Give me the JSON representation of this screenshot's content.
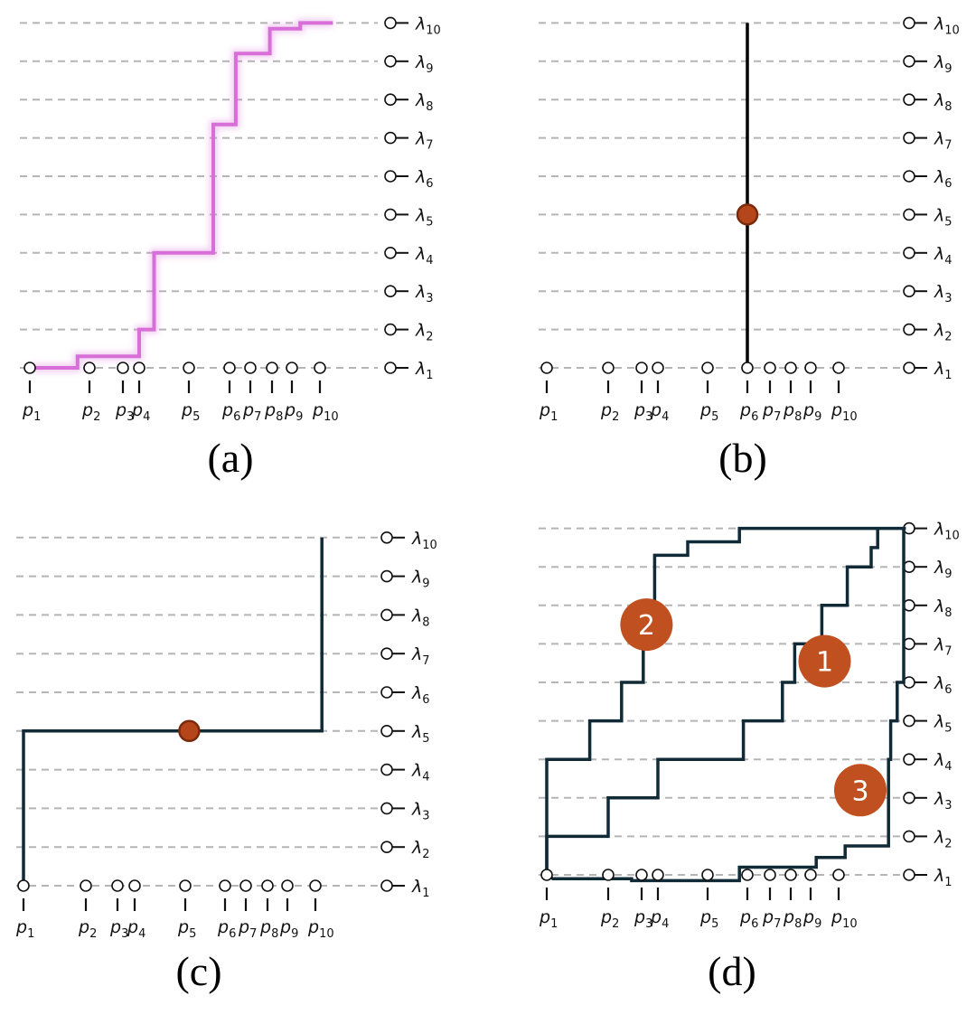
{
  "panels": [
    {
      "id": "a",
      "caption": "(a)",
      "path_style": "glow",
      "path_color": "#d86fd8",
      "path": [
        [
          1,
          1
        ],
        [
          1.8,
          1
        ],
        [
          1.8,
          1.3
        ],
        [
          4,
          1.3
        ],
        [
          4,
          2
        ],
        [
          4.3,
          2
        ],
        [
          4.3,
          2.95
        ],
        [
          4.3,
          4
        ],
        [
          5.6,
          4
        ],
        [
          5.6,
          7.35
        ],
        [
          6.3,
          7.35
        ],
        [
          6.3,
          9.2
        ],
        [
          7.9,
          9.2
        ],
        [
          7.9,
          9.85
        ],
        [
          9.3,
          9.85
        ],
        [
          9.3,
          10
        ],
        [
          10.6,
          10
        ]
      ],
      "dot": null,
      "badges": []
    },
    {
      "id": "b",
      "caption": "(b)",
      "path_style": "solid",
      "path_color": "#000000",
      "path": [
        [
          6,
          1
        ],
        [
          6,
          10
        ]
      ],
      "dot": [
        6,
        5
      ],
      "badges": []
    },
    {
      "id": "c",
      "caption": "(c)",
      "path_style": "solid",
      "path_color": "#102a36",
      "path": [
        [
          1,
          1
        ],
        [
          1,
          5
        ],
        [
          10.3,
          5
        ],
        [
          10.3,
          10
        ]
      ],
      "dot": [
        5.1,
        5
      ],
      "badges": []
    },
    {
      "id": "d",
      "caption": "(d)",
      "path_style": "multi",
      "path_color": "#102a36",
      "paths": [
        [
          [
            1,
            1
          ],
          [
            1,
            2
          ],
          [
            2,
            2
          ],
          [
            2,
            3
          ],
          [
            4,
            3
          ],
          [
            4,
            4
          ],
          [
            5.9,
            4
          ],
          [
            5.9,
            5
          ],
          [
            7.6,
            5
          ],
          [
            7.6,
            6
          ],
          [
            8.2,
            6
          ],
          [
            8.2,
            7
          ],
          [
            9.4,
            7
          ],
          [
            9.4,
            8
          ],
          [
            10.4,
            8
          ],
          [
            10.4,
            9
          ],
          [
            11.5,
            9
          ],
          [
            11.5,
            9.5
          ],
          [
            11.8,
            9.5
          ],
          [
            11.8,
            10
          ]
        ],
        [
          [
            1,
            1
          ],
          [
            1,
            4
          ],
          [
            1.7,
            4
          ],
          [
            1.7,
            5
          ],
          [
            2.4,
            5
          ],
          [
            2.4,
            6
          ],
          [
            3.1,
            6
          ],
          [
            3.1,
            7
          ],
          [
            3.8,
            7
          ],
          [
            3.8,
            9.3
          ],
          [
            4.6,
            9.3
          ],
          [
            4.6,
            9.65
          ],
          [
            5.8,
            9.65
          ],
          [
            5.8,
            10
          ],
          [
            13.1,
            10
          ]
        ],
        [
          [
            1,
            1
          ],
          [
            1.1,
            0.9
          ],
          [
            2.7,
            0.9
          ],
          [
            2.7,
            0.85
          ],
          [
            5.8,
            0.85
          ],
          [
            5.8,
            1.2
          ],
          [
            9.2,
            1.2
          ],
          [
            9.2,
            1.45
          ],
          [
            10.3,
            1.45
          ],
          [
            10.3,
            1.75
          ],
          [
            12.3,
            1.75
          ],
          [
            12.3,
            4
          ],
          [
            12.4,
            4
          ],
          [
            12.4,
            5
          ],
          [
            12.7,
            5
          ],
          [
            12.7,
            6
          ],
          [
            13.0,
            6
          ],
          [
            13.0,
            10
          ]
        ]
      ],
      "dot": null,
      "badges": [
        {
          "label": "2",
          "at": [
            3.3,
            7.5
          ]
        },
        {
          "label": "1",
          "at": [
            9.5,
            6.55
          ]
        },
        {
          "label": "3",
          "at": [
            11.0,
            3.2
          ]
        }
      ]
    }
  ],
  "axis": {
    "lambda_symbol": "λ",
    "lambda_subscripts": [
      "1",
      "2",
      "3",
      "4",
      "5",
      "6",
      "7",
      "8",
      "9",
      "10"
    ],
    "p_symbol": "p",
    "p_subscripts": [
      "1",
      "2",
      "3",
      "4",
      "5",
      "6",
      "7",
      "8",
      "9",
      "10"
    ]
  },
  "colors": {
    "gridline": "#b5b5b5",
    "tick": "#111111",
    "dot_fill": "#b5451b",
    "dot_stroke": "#7a2a0c",
    "badge_fill": "#c0501f"
  }
}
